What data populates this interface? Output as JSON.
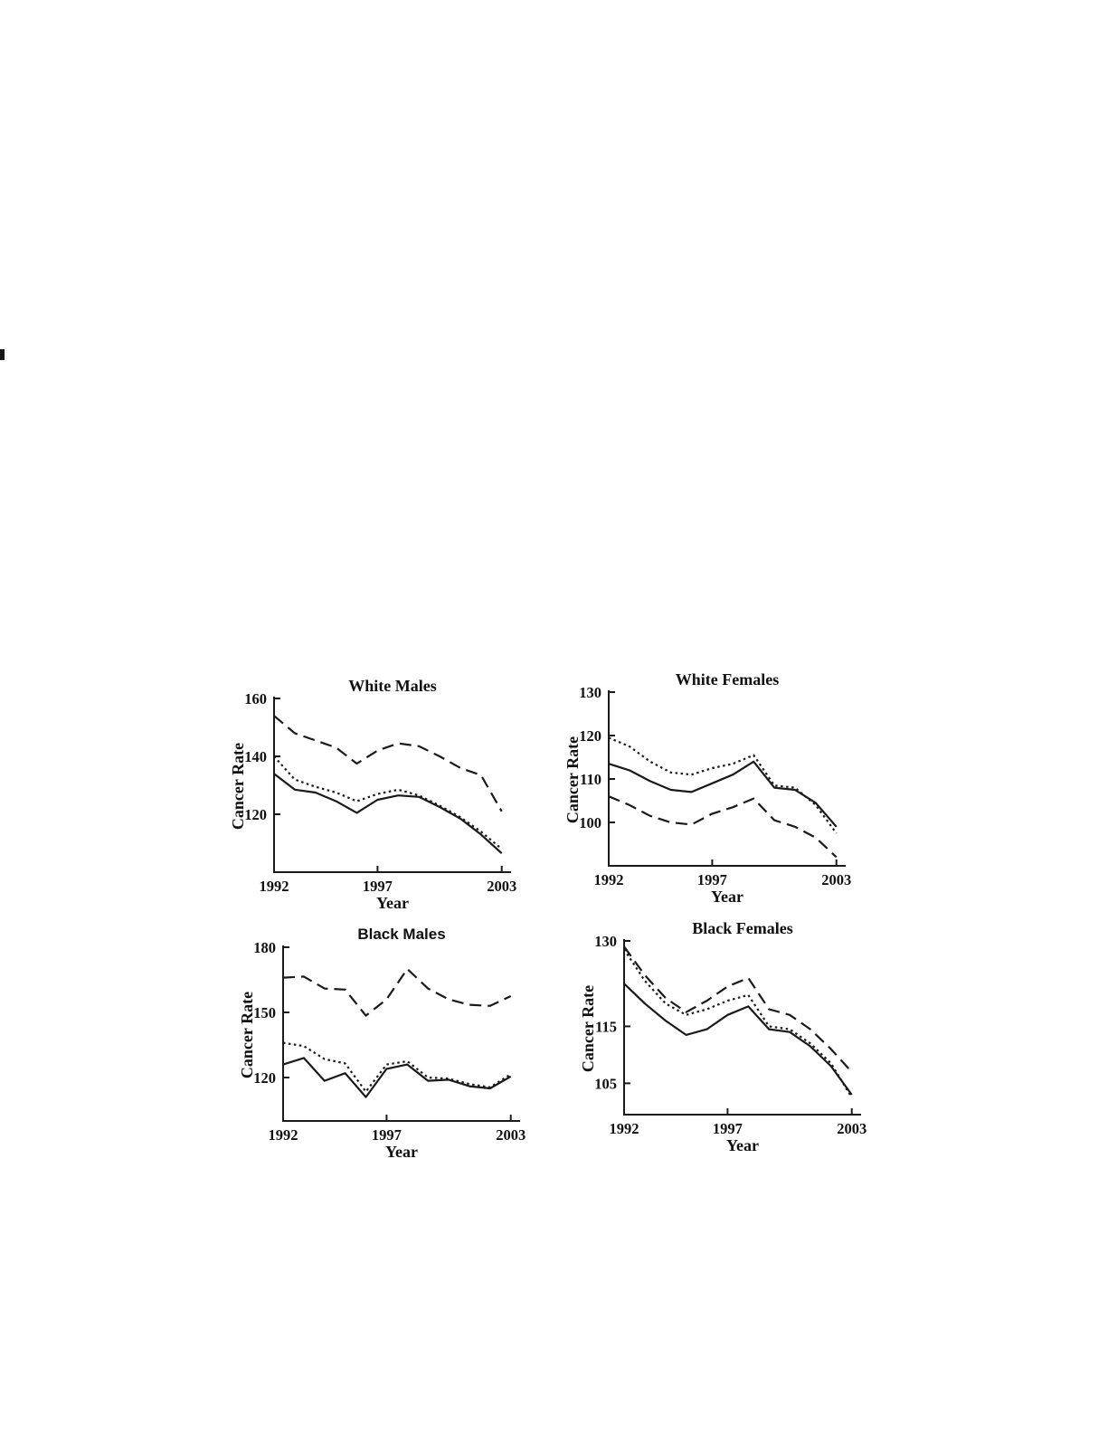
{
  "page": {
    "background": "#ffffff",
    "line_color": "#1a1a1a"
  },
  "chart_data": [
    {
      "id": "white-males",
      "type": "line",
      "title": "White Males",
      "xlabel": "Year",
      "ylabel": "Cancer Rate",
      "x": [
        1992,
        1993,
        1994,
        1995,
        1996,
        1997,
        1998,
        1999,
        2000,
        2001,
        2002,
        2003
      ],
      "xlim": [
        1992,
        2003.45
      ],
      "ylim": [
        100,
        160
      ],
      "xticks": [
        1992,
        1997,
        2003
      ],
      "yticks": [
        120,
        140,
        160
      ],
      "grid": false,
      "legend": null,
      "series": [
        {
          "name": "upper-dashed",
          "style": "dashed",
          "values": [
            154,
            148,
            145.5,
            143,
            137.5,
            142,
            144.5,
            143.5,
            140,
            136,
            133.5,
            121
          ]
        },
        {
          "name": "middle-dotted",
          "style": "dotted",
          "values": [
            140,
            132,
            129.5,
            127.5,
            124.5,
            127,
            128.5,
            126.5,
            123,
            119,
            114,
            108
          ]
        },
        {
          "name": "lower-solid",
          "style": "solid",
          "values": [
            134,
            128.5,
            127.5,
            124.5,
            120.5,
            125,
            126.5,
            126,
            122.5,
            118.5,
            113,
            106.5
          ]
        }
      ]
    },
    {
      "id": "white-females",
      "type": "line",
      "title": "White Females",
      "xlabel": "Year",
      "ylabel": "Cancer Rate",
      "x": [
        1992,
        1993,
        1994,
        1995,
        1996,
        1997,
        1998,
        1999,
        2000,
        2001,
        2002,
        2003
      ],
      "xlim": [
        1992,
        2003.45
      ],
      "ylim": [
        90,
        130
      ],
      "xticks": [
        1992,
        1997,
        2003
      ],
      "yticks": [
        100,
        110,
        120,
        130
      ],
      "grid": false,
      "legend": null,
      "series": [
        {
          "name": "upper-dotted",
          "style": "dotted",
          "values": [
            119.5,
            117.5,
            114,
            111.5,
            111,
            112.5,
            113.5,
            115.5,
            108.5,
            108,
            104,
            97.5
          ]
        },
        {
          "name": "middle-solid",
          "style": "solid",
          "values": [
            113.5,
            112,
            109.5,
            107.5,
            107,
            109,
            111,
            114,
            108,
            107.5,
            104.5,
            99
          ]
        },
        {
          "name": "lower-dashed",
          "style": "dashed",
          "values": [
            106,
            104,
            101.5,
            100,
            99.5,
            102,
            103.5,
            105.5,
            100.5,
            99,
            96.5,
            92
          ]
        }
      ]
    },
    {
      "id": "black-males",
      "type": "line",
      "title": "Black Males",
      "xlabel": "Year",
      "ylabel": "Cancer Rate",
      "x": [
        1992,
        1993,
        1994,
        1995,
        1996,
        1997,
        1998,
        1999,
        2000,
        2001,
        2002,
        2003
      ],
      "xlim": [
        1992,
        2003.45
      ],
      "ylim": [
        100,
        180
      ],
      "xticks": [
        1992,
        1997,
        2003
      ],
      "yticks": [
        120,
        150,
        180
      ],
      "grid": false,
      "legend": null,
      "series": [
        {
          "name": "upper-dashed",
          "style": "dashed",
          "values": [
            166,
            166.5,
            161,
            160.5,
            148.5,
            156,
            170,
            161,
            156,
            153.5,
            153,
            157.5
          ]
        },
        {
          "name": "middle-dotted",
          "style": "dotted",
          "values": [
            136,
            134.5,
            128.5,
            126.5,
            113.5,
            126,
            127.5,
            120,
            119.5,
            117,
            115.5,
            121.5
          ]
        },
        {
          "name": "lower-solid",
          "style": "solid",
          "values": [
            126,
            129,
            118.5,
            122,
            111,
            124,
            126,
            118.5,
            119,
            116,
            115,
            120.5
          ]
        }
      ]
    },
    {
      "id": "black-females",
      "type": "line",
      "title": "Black Females",
      "xlabel": "Year",
      "ylabel": "Cancer Rate",
      "x": [
        1992,
        1993,
        1994,
        1995,
        1996,
        1997,
        1998,
        1999,
        2000,
        2001,
        2002,
        2003
      ],
      "xlim": [
        1992,
        2003.45
      ],
      "ylim": [
        99.5,
        130
      ],
      "xticks": [
        1992,
        1997,
        2003
      ],
      "yticks": [
        105,
        115,
        130
      ],
      "grid": false,
      "legend": null,
      "series": [
        {
          "name": "upper-dashed",
          "style": "dashed",
          "values": [
            129,
            124,
            120,
            117.5,
            119.5,
            122,
            123.5,
            118,
            117,
            114.5,
            111,
            107
          ]
        },
        {
          "name": "middle-dotted",
          "style": "dotted",
          "values": [
            128.5,
            123,
            119,
            117,
            118,
            119.5,
            120.5,
            115,
            114.5,
            112,
            108.5,
            102.5
          ]
        },
        {
          "name": "lower-solid",
          "style": "solid",
          "values": [
            122.5,
            119,
            116,
            113.5,
            114.5,
            117,
            118.5,
            114.5,
            114,
            111.5,
            108,
            103
          ]
        }
      ]
    }
  ]
}
